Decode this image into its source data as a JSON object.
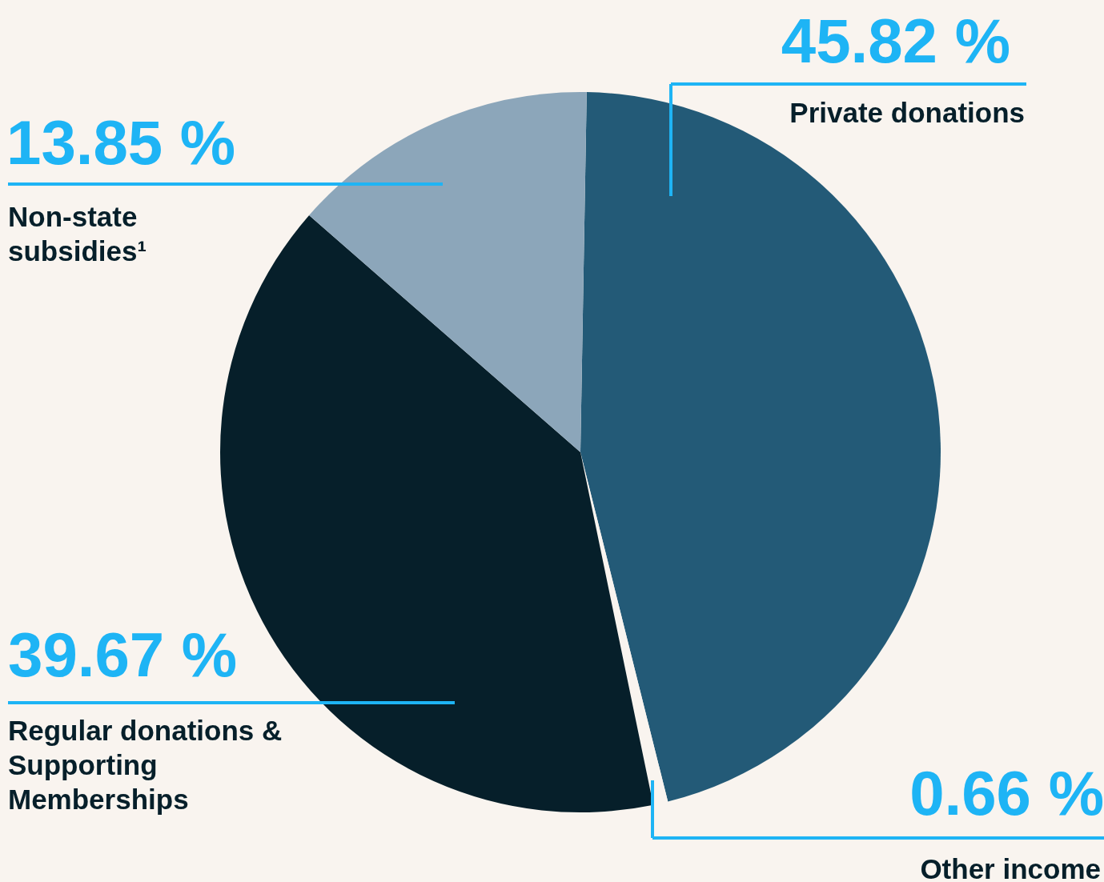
{
  "chart_data": {
    "type": "pie",
    "categories": [
      "Private donations",
      "Other income",
      "Regular donations & Supporting Memberships",
      "Non-state subsidies¹"
    ],
    "values": [
      45.82,
      0.66,
      39.67,
      13.85
    ],
    "colors": [
      "#235a77",
      "#f9f4ef",
      "#061f2a",
      "#8ca6ba"
    ],
    "value_labels": [
      "45.82 %",
      "0.66 %",
      "39.67 %",
      "13.85 %"
    ],
    "legend": false
  }
}
